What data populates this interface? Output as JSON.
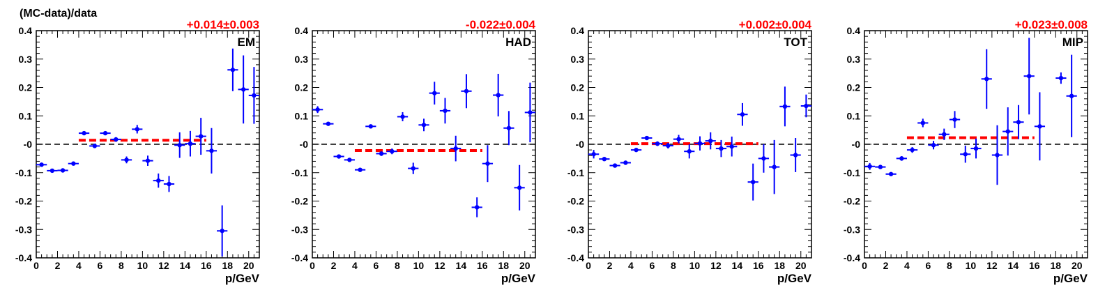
{
  "figure": {
    "ylabel": "(MC-data)/data",
    "xlabel": "p/GeV"
  },
  "colors": {
    "points": "#0000ff",
    "fit": "#ff0000",
    "zero_line": "#000000",
    "frame": "#000000"
  },
  "chart_data": [
    {
      "type": "scatter",
      "panel": "EM",
      "fit_label": "+0.014±0.003",
      "fit_value": 0.014,
      "fit_range": [
        4,
        16
      ],
      "xlabel": "p/GeV",
      "ylabel": "(MC-data)/data",
      "xlim": [
        0,
        21
      ],
      "ylim": [
        -0.4,
        0.4
      ],
      "x_ticks": [
        "0",
        "2",
        "4",
        "6",
        "8",
        "10",
        "12",
        "14",
        "16",
        "18",
        "20"
      ],
      "y_ticks": [
        "0.4",
        "0.3",
        "0.2",
        "0.1",
        "-0",
        "-0.1",
        "-0.2",
        "-0.3",
        "-0.4"
      ],
      "legend": "top-right",
      "points": [
        {
          "x": 0.5,
          "y": -0.072,
          "err": 0.005
        },
        {
          "x": 1.5,
          "y": -0.093,
          "err": 0.005
        },
        {
          "x": 2.5,
          "y": -0.092,
          "err": 0.005
        },
        {
          "x": 3.5,
          "y": -0.068,
          "err": 0.005
        },
        {
          "x": 4.5,
          "y": 0.039,
          "err": 0.007
        },
        {
          "x": 5.5,
          "y": -0.006,
          "err": 0.007
        },
        {
          "x": 6.5,
          "y": 0.039,
          "err": 0.007
        },
        {
          "x": 7.5,
          "y": 0.017,
          "err": 0.008
        },
        {
          "x": 8.5,
          "y": -0.055,
          "err": 0.012
        },
        {
          "x": 9.5,
          "y": 0.053,
          "err": 0.015
        },
        {
          "x": 10.5,
          "y": -0.058,
          "err": 0.018
        },
        {
          "x": 11.5,
          "y": -0.128,
          "err": 0.025
        },
        {
          "x": 12.5,
          "y": -0.14,
          "err": 0.028
        },
        {
          "x": 13.5,
          "y": -0.003,
          "err": 0.045
        },
        {
          "x": 14.5,
          "y": 0.002,
          "err": 0.045
        },
        {
          "x": 15.5,
          "y": 0.028,
          "err": 0.065
        },
        {
          "x": 16.5,
          "y": -0.023,
          "err": 0.08
        },
        {
          "x": 17.5,
          "y": -0.305,
          "err": 0.09
        },
        {
          "x": 18.5,
          "y": 0.262,
          "err": 0.075
        },
        {
          "x": 19.5,
          "y": 0.193,
          "err": 0.12
        },
        {
          "x": 20.5,
          "y": 0.172,
          "err": 0.1
        }
      ]
    },
    {
      "type": "scatter",
      "panel": "HAD",
      "fit_label": "-0.022±0.004",
      "fit_value": -0.022,
      "fit_range": [
        4,
        16
      ],
      "xlabel": "p/GeV",
      "ylabel": "",
      "xlim": [
        0,
        21
      ],
      "ylim": [
        -0.4,
        0.4
      ],
      "x_ticks": [
        "0",
        "2",
        "4",
        "6",
        "8",
        "10",
        "12",
        "14",
        "16",
        "18",
        "20"
      ],
      "y_ticks": [
        "0.4",
        "0.3",
        "0.2",
        "0.1",
        "-0",
        "-0.1",
        "-0.2",
        "-0.3",
        "-0.4"
      ],
      "legend": "top-right",
      "points": [
        {
          "x": 0.5,
          "y": 0.122,
          "err": 0.012
        },
        {
          "x": 1.5,
          "y": 0.072,
          "err": 0.006
        },
        {
          "x": 2.5,
          "y": -0.043,
          "err": 0.005
        },
        {
          "x": 3.5,
          "y": -0.055,
          "err": 0.005
        },
        {
          "x": 4.5,
          "y": -0.09,
          "err": 0.006
        },
        {
          "x": 5.5,
          "y": 0.063,
          "err": 0.006
        },
        {
          "x": 6.5,
          "y": -0.033,
          "err": 0.008
        },
        {
          "x": 7.5,
          "y": -0.025,
          "err": 0.01
        },
        {
          "x": 8.5,
          "y": 0.097,
          "err": 0.016
        },
        {
          "x": 9.5,
          "y": -0.085,
          "err": 0.02
        },
        {
          "x": 10.5,
          "y": 0.068,
          "err": 0.022
        },
        {
          "x": 11.5,
          "y": 0.18,
          "err": 0.04
        },
        {
          "x": 12.5,
          "y": 0.118,
          "err": 0.045
        },
        {
          "x": 13.5,
          "y": -0.015,
          "err": 0.045
        },
        {
          "x": 14.5,
          "y": 0.187,
          "err": 0.06
        },
        {
          "x": 15.5,
          "y": -0.222,
          "err": 0.035
        },
        {
          "x": 16.5,
          "y": -0.068,
          "err": 0.065
        },
        {
          "x": 17.5,
          "y": 0.173,
          "err": 0.075
        },
        {
          "x": 18.5,
          "y": 0.057,
          "err": 0.06
        },
        {
          "x": 19.5,
          "y": -0.153,
          "err": 0.08
        },
        {
          "x": 20.5,
          "y": 0.112,
          "err": 0.105
        }
      ]
    },
    {
      "type": "scatter",
      "panel": "TOT",
      "fit_label": "+0.002±0.004",
      "fit_value": 0.002,
      "fit_range": [
        4,
        16
      ],
      "xlabel": "p/GeV",
      "ylabel": "",
      "xlim": [
        0,
        21
      ],
      "ylim": [
        -0.4,
        0.4
      ],
      "x_ticks": [
        "0",
        "2",
        "4",
        "6",
        "8",
        "10",
        "12",
        "14",
        "16",
        "18",
        "20"
      ],
      "y_ticks": [
        "0.4",
        "0.3",
        "0.2",
        "0.1",
        "-0",
        "-0.1",
        "-0.2",
        "-0.3",
        "-0.4"
      ],
      "legend": "top-right",
      "points": [
        {
          "x": 0.5,
          "y": -0.035,
          "err": 0.015
        },
        {
          "x": 1.5,
          "y": -0.052,
          "err": 0.006
        },
        {
          "x": 2.5,
          "y": -0.075,
          "err": 0.005
        },
        {
          "x": 3.5,
          "y": -0.065,
          "err": 0.006
        },
        {
          "x": 4.5,
          "y": -0.02,
          "err": 0.006
        },
        {
          "x": 5.5,
          "y": 0.022,
          "err": 0.006
        },
        {
          "x": 6.5,
          "y": 0.002,
          "err": 0.008
        },
        {
          "x": 7.5,
          "y": -0.005,
          "err": 0.01
        },
        {
          "x": 8.5,
          "y": 0.018,
          "err": 0.015
        },
        {
          "x": 9.5,
          "y": -0.025,
          "err": 0.025
        },
        {
          "x": 10.5,
          "y": 0.003,
          "err": 0.025
        },
        {
          "x": 11.5,
          "y": 0.012,
          "err": 0.03
        },
        {
          "x": 12.5,
          "y": -0.015,
          "err": 0.03
        },
        {
          "x": 13.5,
          "y": -0.008,
          "err": 0.035
        },
        {
          "x": 14.5,
          "y": 0.105,
          "err": 0.04
        },
        {
          "x": 15.5,
          "y": -0.133,
          "err": 0.065
        },
        {
          "x": 16.5,
          "y": -0.05,
          "err": 0.05
        },
        {
          "x": 17.5,
          "y": -0.08,
          "err": 0.095
        },
        {
          "x": 18.5,
          "y": 0.133,
          "err": 0.07
        },
        {
          "x": 19.5,
          "y": -0.038,
          "err": 0.06
        },
        {
          "x": 20.5,
          "y": 0.135,
          "err": 0.04
        }
      ]
    },
    {
      "type": "scatter",
      "panel": "MIP",
      "fit_label": "+0.023±0.008",
      "fit_value": 0.023,
      "fit_range": [
        4,
        16
      ],
      "xlabel": "p/GeV",
      "ylabel": "",
      "xlim": [
        0,
        21
      ],
      "ylim": [
        -0.4,
        0.4
      ],
      "x_ticks": [
        "0",
        "2",
        "4",
        "6",
        "8",
        "10",
        "12",
        "14",
        "16",
        "18",
        "20"
      ],
      "y_ticks": [
        "0.4",
        "0.3",
        "0.2",
        "0.1",
        "-0",
        "-0.1",
        "-0.2",
        "-0.3",
        "-0.4"
      ],
      "legend": "top-right",
      "points": [
        {
          "x": 0.5,
          "y": -0.078,
          "err": 0.012
        },
        {
          "x": 1.5,
          "y": -0.08,
          "err": 0.006
        },
        {
          "x": 2.5,
          "y": -0.105,
          "err": 0.006
        },
        {
          "x": 3.5,
          "y": -0.05,
          "err": 0.008
        },
        {
          "x": 4.5,
          "y": -0.02,
          "err": 0.01
        },
        {
          "x": 5.5,
          "y": 0.075,
          "err": 0.015
        },
        {
          "x": 6.5,
          "y": -0.003,
          "err": 0.015
        },
        {
          "x": 7.5,
          "y": 0.035,
          "err": 0.02
        },
        {
          "x": 8.5,
          "y": 0.087,
          "err": 0.03
        },
        {
          "x": 9.5,
          "y": -0.035,
          "err": 0.03
        },
        {
          "x": 10.5,
          "y": -0.015,
          "err": 0.035
        },
        {
          "x": 11.5,
          "y": 0.23,
          "err": 0.105
        },
        {
          "x": 12.5,
          "y": -0.038,
          "err": 0.105
        },
        {
          "x": 13.5,
          "y": 0.045,
          "err": 0.085
        },
        {
          "x": 14.5,
          "y": 0.078,
          "err": 0.06
        },
        {
          "x": 15.5,
          "y": 0.24,
          "err": 0.135
        },
        {
          "x": 16.5,
          "y": 0.063,
          "err": 0.12
        },
        {
          "x": 18.5,
          "y": 0.233,
          "err": 0.02
        },
        {
          "x": 19.5,
          "y": 0.17,
          "err": 0.145
        }
      ]
    }
  ]
}
